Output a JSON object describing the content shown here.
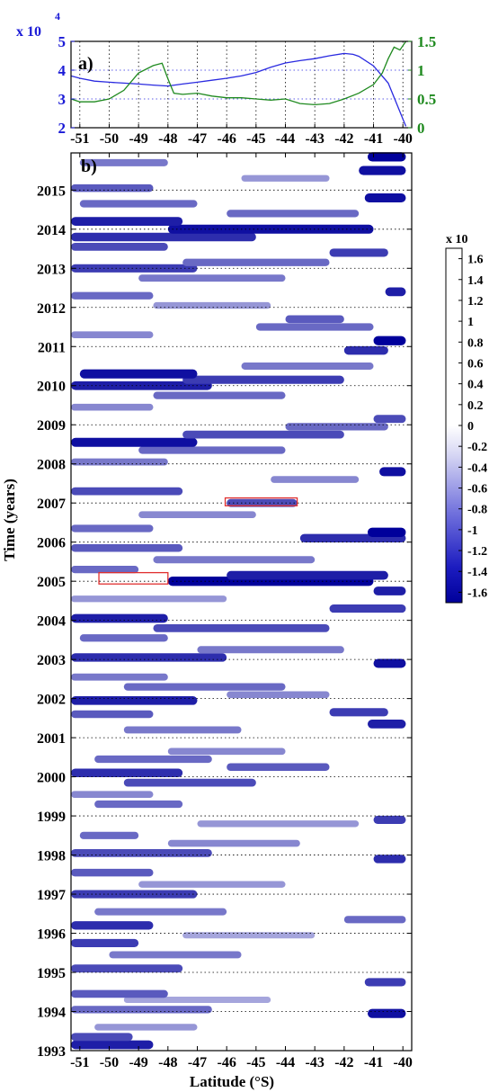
{
  "chart_data": [
    {
      "panel": "a)",
      "type": "line",
      "xlim": [
        -51.3,
        -39.7
      ],
      "x_ticks": [
        -51,
        -50,
        -49,
        -48,
        -47,
        -46,
        -45,
        -44,
        -43,
        -42,
        -41,
        -40
      ],
      "left_axis": {
        "multiplier": "x 10",
        "exponent": "4",
        "ylim": [
          2,
          5
        ],
        "ticks": [
          2,
          3,
          4,
          5
        ],
        "color": "#1a1ad6"
      },
      "right_axis": {
        "ylim": [
          0,
          1.5
        ],
        "ticks": [
          "0",
          "0.5",
          "1",
          "1.5"
        ],
        "color": "#1f8a1f"
      },
      "grid": true,
      "series": [
        {
          "axis": "left",
          "color": "#2a2ae0",
          "x": [
            -51.3,
            -51,
            -50.5,
            -50,
            -49.5,
            -49,
            -48.5,
            -48,
            -47.5,
            -47,
            -46.5,
            -46,
            -45.5,
            -45,
            -44.5,
            -44,
            -43.5,
            -43,
            -42.5,
            -42,
            -41.7,
            -41.5,
            -41,
            -40.5,
            -40.2,
            -39.9
          ],
          "y": [
            3.8,
            3.72,
            3.62,
            3.58,
            3.55,
            3.52,
            3.48,
            3.45,
            3.52,
            3.58,
            3.65,
            3.72,
            3.8,
            3.92,
            4.1,
            4.25,
            4.33,
            4.4,
            4.5,
            4.58,
            4.55,
            4.48,
            4.15,
            3.55,
            2.8,
            2.05
          ]
        },
        {
          "axis": "right",
          "color": "#1f8a1f",
          "x": [
            -51.3,
            -51,
            -50.5,
            -50,
            -49.5,
            -49,
            -48.5,
            -48.2,
            -48,
            -47.8,
            -47.5,
            -47,
            -46.5,
            -46,
            -45.5,
            -45,
            -44.5,
            -44,
            -43.5,
            -43,
            -42.5,
            -42,
            -41.5,
            -41,
            -40.7,
            -40.5,
            -40.3,
            -40.1,
            -39.9
          ],
          "y": [
            0.5,
            0.45,
            0.45,
            0.5,
            0.65,
            0.95,
            1.08,
            1.12,
            0.85,
            0.6,
            0.58,
            0.6,
            0.55,
            0.52,
            0.52,
            0.5,
            0.48,
            0.5,
            0.42,
            0.4,
            0.42,
            0.5,
            0.6,
            0.75,
            0.95,
            1.2,
            1.4,
            1.35,
            1.5
          ]
        }
      ]
    },
    {
      "panel": "b)",
      "type": "heatmap",
      "xlabel": "Latitude (°S)",
      "ylabel": "Time (years)",
      "xlim": [
        -51.3,
        -39.7
      ],
      "ylim": [
        1993,
        2015.95
      ],
      "x_ticks": [
        -51,
        -50,
        -49,
        -48,
        -47,
        -46,
        -45,
        -44,
        -43,
        -42,
        -41,
        -40
      ],
      "y_ticks": [
        1993,
        1994,
        1995,
        1996,
        1997,
        1998,
        1999,
        2000,
        2001,
        2002,
        2003,
        2004,
        2005,
        2006,
        2007,
        2008,
        2009,
        2010,
        2011,
        2012,
        2013,
        2014,
        2015
      ],
      "grid": "dotted horizontal",
      "highlight_boxes": [
        {
          "x": [
            -50.35,
            -48.0
          ],
          "y": [
            2004.93,
            2005.22
          ],
          "color": "#e03030"
        },
        {
          "x": [
            -46.05,
            -43.6
          ],
          "y": [
            2006.93,
            2007.13
          ],
          "color": "#e03030"
        }
      ],
      "colorbar": {
        "multiplier": "x 10",
        "range": [
          -1.7,
          1.7
        ],
        "ticks": [
          "1.6",
          "1.4",
          "1.2",
          "1",
          "0.8",
          "0.6",
          "0.4",
          "0.2",
          "0",
          "-0.2",
          "-0.4",
          "-0.6",
          "-0.8",
          "-1",
          "-1.2",
          "-1.4",
          "-1.6"
        ],
        "low_color": "#00009a",
        "high_color": "#ffffff"
      },
      "bands": [
        {
          "t": 1993.15,
          "x0": -51.3,
          "x1": -48.5,
          "v": -1.5
        },
        {
          "t": 1993.35,
          "x0": -51.3,
          "x1": -49.2,
          "v": -1.2
        },
        {
          "t": 1993.6,
          "x0": -50.5,
          "x1": -47.0,
          "v": -0.7
        },
        {
          "t": 1993.95,
          "x0": -41.2,
          "x1": -39.9,
          "v": -1.6
        },
        {
          "t": 1994.05,
          "x0": -51.3,
          "x1": -46.5,
          "v": -1.0
        },
        {
          "t": 1994.3,
          "x0": -49.5,
          "x1": -44.5,
          "v": -0.6
        },
        {
          "t": 1994.45,
          "x0": -51.3,
          "x1": -48.0,
          "v": -1.1
        },
        {
          "t": 1994.75,
          "x0": -41.3,
          "x1": -39.9,
          "v": -1.3
        },
        {
          "t": 1995.1,
          "x0": -51.3,
          "x1": -47.5,
          "v": -1.2
        },
        {
          "t": 1995.45,
          "x0": -50.0,
          "x1": -45.5,
          "v": -0.9
        },
        {
          "t": 1995.75,
          "x0": -51.3,
          "x1": -49.0,
          "v": -1.3
        },
        {
          "t": 1995.95,
          "x0": -47.5,
          "x1": -43.0,
          "v": -0.6
        },
        {
          "t": 1996.2,
          "x0": -51.3,
          "x1": -48.5,
          "v": -1.4
        },
        {
          "t": 1996.35,
          "x0": -42.0,
          "x1": -39.9,
          "v": -1.0
        },
        {
          "t": 1996.55,
          "x0": -50.5,
          "x1": -46.0,
          "v": -0.9
        },
        {
          "t": 1997.0,
          "x0": -51.3,
          "x1": -47.0,
          "v": -1.3
        },
        {
          "t": 1997.25,
          "x0": -49.0,
          "x1": -44.0,
          "v": -0.7
        },
        {
          "t": 1997.55,
          "x0": -51.3,
          "x1": -48.5,
          "v": -1.1
        },
        {
          "t": 1997.9,
          "x0": -41.0,
          "x1": -39.9,
          "v": -1.4
        },
        {
          "t": 1998.05,
          "x0": -51.3,
          "x1": -46.5,
          "v": -1.2
        },
        {
          "t": 1998.3,
          "x0": -48.0,
          "x1": -43.5,
          "v": -0.8
        },
        {
          "t": 1998.5,
          "x0": -51.0,
          "x1": -49.0,
          "v": -1.0
        },
        {
          "t": 1998.8,
          "x0": -47.0,
          "x1": -41.5,
          "v": -0.7
        },
        {
          "t": 1998.9,
          "x0": -41.0,
          "x1": -39.9,
          "v": -1.3
        },
        {
          "t": 1999.3,
          "x0": -50.5,
          "x1": -47.5,
          "v": -1.0
        },
        {
          "t": 1999.55,
          "x0": -51.3,
          "x1": -48.5,
          "v": -0.8
        },
        {
          "t": 1999.85,
          "x0": -49.5,
          "x1": -45.0,
          "v": -1.2
        },
        {
          "t": 2000.1,
          "x0": -51.3,
          "x1": -47.5,
          "v": -1.4
        },
        {
          "t": 2000.25,
          "x0": -46.0,
          "x1": -42.5,
          "v": -1.1
        },
        {
          "t": 2000.45,
          "x0": -50.5,
          "x1": -46.5,
          "v": -1.0
        },
        {
          "t": 2000.65,
          "x0": -48.0,
          "x1": -44.0,
          "v": -0.8
        },
        {
          "t": 2001.2,
          "x0": -49.5,
          "x1": -45.5,
          "v": -0.9
        },
        {
          "t": 2001.35,
          "x0": -41.2,
          "x1": -39.9,
          "v": -1.5
        },
        {
          "t": 2001.6,
          "x0": -51.3,
          "x1": -48.5,
          "v": -1.1
        },
        {
          "t": 2001.65,
          "x0": -42.5,
          "x1": -40.5,
          "v": -1.3
        },
        {
          "t": 2001.95,
          "x0": -51.3,
          "x1": -47.0,
          "v": -1.5
        },
        {
          "t": 2002.1,
          "x0": -46.0,
          "x1": -42.5,
          "v": -0.8
        },
        {
          "t": 2002.3,
          "x0": -49.5,
          "x1": -44.0,
          "v": -1.0
        },
        {
          "t": 2002.55,
          "x0": -51.3,
          "x1": -48.0,
          "v": -0.9
        },
        {
          "t": 2002.9,
          "x0": -41.0,
          "x1": -39.9,
          "v": -1.6
        },
        {
          "t": 2003.05,
          "x0": -51.3,
          "x1": -46.0,
          "v": -1.4
        },
        {
          "t": 2003.25,
          "x0": -47.0,
          "x1": -42.0,
          "v": -0.9
        },
        {
          "t": 2003.55,
          "x0": -51.0,
          "x1": -48.0,
          "v": -1.0
        },
        {
          "t": 2003.8,
          "x0": -48.5,
          "x1": -42.5,
          "v": -1.2
        },
        {
          "t": 2004.05,
          "x0": -51.3,
          "x1": -48.0,
          "v": -1.5
        },
        {
          "t": 2004.3,
          "x0": -42.5,
          "x1": -39.9,
          "v": -1.3
        },
        {
          "t": 2004.55,
          "x0": -51.3,
          "x1": -46.0,
          "v": -0.7
        },
        {
          "t": 2004.75,
          "x0": -41.0,
          "x1": -39.9,
          "v": -1.5
        },
        {
          "t": 2005.0,
          "x0": -48.0,
          "x1": -41.0,
          "v": -1.7
        },
        {
          "t": 2005.15,
          "x0": -46.0,
          "x1": -40.5,
          "v": -1.5
        },
        {
          "t": 2005.3,
          "x0": -51.3,
          "x1": -49.0,
          "v": -1.0
        },
        {
          "t": 2005.55,
          "x0": -48.5,
          "x1": -43.0,
          "v": -0.9
        },
        {
          "t": 2005.85,
          "x0": -51.3,
          "x1": -47.5,
          "v": -1.1
        },
        {
          "t": 2006.1,
          "x0": -43.5,
          "x1": -39.9,
          "v": -1.4
        },
        {
          "t": 2006.25,
          "x0": -41.2,
          "x1": -39.9,
          "v": -1.7
        },
        {
          "t": 2006.35,
          "x0": -51.3,
          "x1": -48.5,
          "v": -1.0
        },
        {
          "t": 2006.7,
          "x0": -49.0,
          "x1": -45.0,
          "v": -0.8
        },
        {
          "t": 2007.0,
          "x0": -46.0,
          "x1": -43.6,
          "v": -1.2
        },
        {
          "t": 2007.3,
          "x0": -51.3,
          "x1": -47.5,
          "v": -1.2
        },
        {
          "t": 2007.6,
          "x0": -44.5,
          "x1": -41.5,
          "v": -0.8
        },
        {
          "t": 2007.8,
          "x0": -40.8,
          "x1": -39.9,
          "v": -1.6
        },
        {
          "t": 2008.05,
          "x0": -51.3,
          "x1": -48.0,
          "v": -0.9
        },
        {
          "t": 2008.35,
          "x0": -49.0,
          "x1": -44.0,
          "v": -1.0
        },
        {
          "t": 2008.55,
          "x0": -51.3,
          "x1": -47.0,
          "v": -1.6
        },
        {
          "t": 2008.75,
          "x0": -47.5,
          "x1": -42.0,
          "v": -1.2
        },
        {
          "t": 2008.95,
          "x0": -44.0,
          "x1": -40.5,
          "v": -1.0
        },
        {
          "t": 2009.15,
          "x0": -41.0,
          "x1": -39.9,
          "v": -1.2
        },
        {
          "t": 2009.45,
          "x0": -51.3,
          "x1": -48.5,
          "v": -0.8
        },
        {
          "t": 2009.75,
          "x0": -48.5,
          "x1": -44.0,
          "v": -1.0
        },
        {
          "t": 2010.0,
          "x0": -51.3,
          "x1": -46.5,
          "v": -1.5
        },
        {
          "t": 2010.15,
          "x0": -47.5,
          "x1": -42.0,
          "v": -1.3
        },
        {
          "t": 2010.3,
          "x0": -51.0,
          "x1": -47.0,
          "v": -1.6
        },
        {
          "t": 2010.5,
          "x0": -45.5,
          "x1": -41.0,
          "v": -0.9
        },
        {
          "t": 2010.9,
          "x0": -42.0,
          "x1": -40.5,
          "v": -1.4
        },
        {
          "t": 2011.15,
          "x0": -41.0,
          "x1": -39.9,
          "v": -1.7
        },
        {
          "t": 2011.3,
          "x0": -51.3,
          "x1": -48.5,
          "v": -0.8
        },
        {
          "t": 2011.5,
          "x0": -45.0,
          "x1": -41.0,
          "v": -1.0
        },
        {
          "t": 2011.7,
          "x0": -44.0,
          "x1": -42.0,
          "v": -1.1
        },
        {
          "t": 2012.05,
          "x0": -48.5,
          "x1": -44.5,
          "v": -0.7
        },
        {
          "t": 2012.3,
          "x0": -51.3,
          "x1": -48.5,
          "v": -1.0
        },
        {
          "t": 2012.4,
          "x0": -40.6,
          "x1": -39.9,
          "v": -1.5
        },
        {
          "t": 2012.75,
          "x0": -49.0,
          "x1": -44.0,
          "v": -0.9
        },
        {
          "t": 2013.0,
          "x0": -51.3,
          "x1": -47.0,
          "v": -1.3
        },
        {
          "t": 2013.15,
          "x0": -47.5,
          "x1": -42.5,
          "v": -1.0
        },
        {
          "t": 2013.4,
          "x0": -42.5,
          "x1": -40.5,
          "v": -1.3
        },
        {
          "t": 2013.55,
          "x0": -51.3,
          "x1": -48.0,
          "v": -1.2
        },
        {
          "t": 2013.8,
          "x0": -51.3,
          "x1": -45.0,
          "v": -1.4
        },
        {
          "t": 2014.0,
          "x0": -48.0,
          "x1": -41.0,
          "v": -1.6
        },
        {
          "t": 2014.2,
          "x0": -51.3,
          "x1": -47.5,
          "v": -1.5
        },
        {
          "t": 2014.4,
          "x0": -46.0,
          "x1": -41.5,
          "v": -1.0
        },
        {
          "t": 2014.65,
          "x0": -51.0,
          "x1": -47.0,
          "v": -1.0
        },
        {
          "t": 2014.8,
          "x0": -41.3,
          "x1": -39.9,
          "v": -1.6
        },
        {
          "t": 2015.05,
          "x0": -51.3,
          "x1": -48.5,
          "v": -1.1
        },
        {
          "t": 2015.3,
          "x0": -45.5,
          "x1": -42.5,
          "v": -0.7
        },
        {
          "t": 2015.5,
          "x0": -41.5,
          "x1": -39.9,
          "v": -1.6
        },
        {
          "t": 2015.7,
          "x0": -51.0,
          "x1": -48.0,
          "v": -0.9
        },
        {
          "t": 2015.85,
          "x0": -41.2,
          "x1": -39.9,
          "v": -1.7
        }
      ]
    }
  ]
}
